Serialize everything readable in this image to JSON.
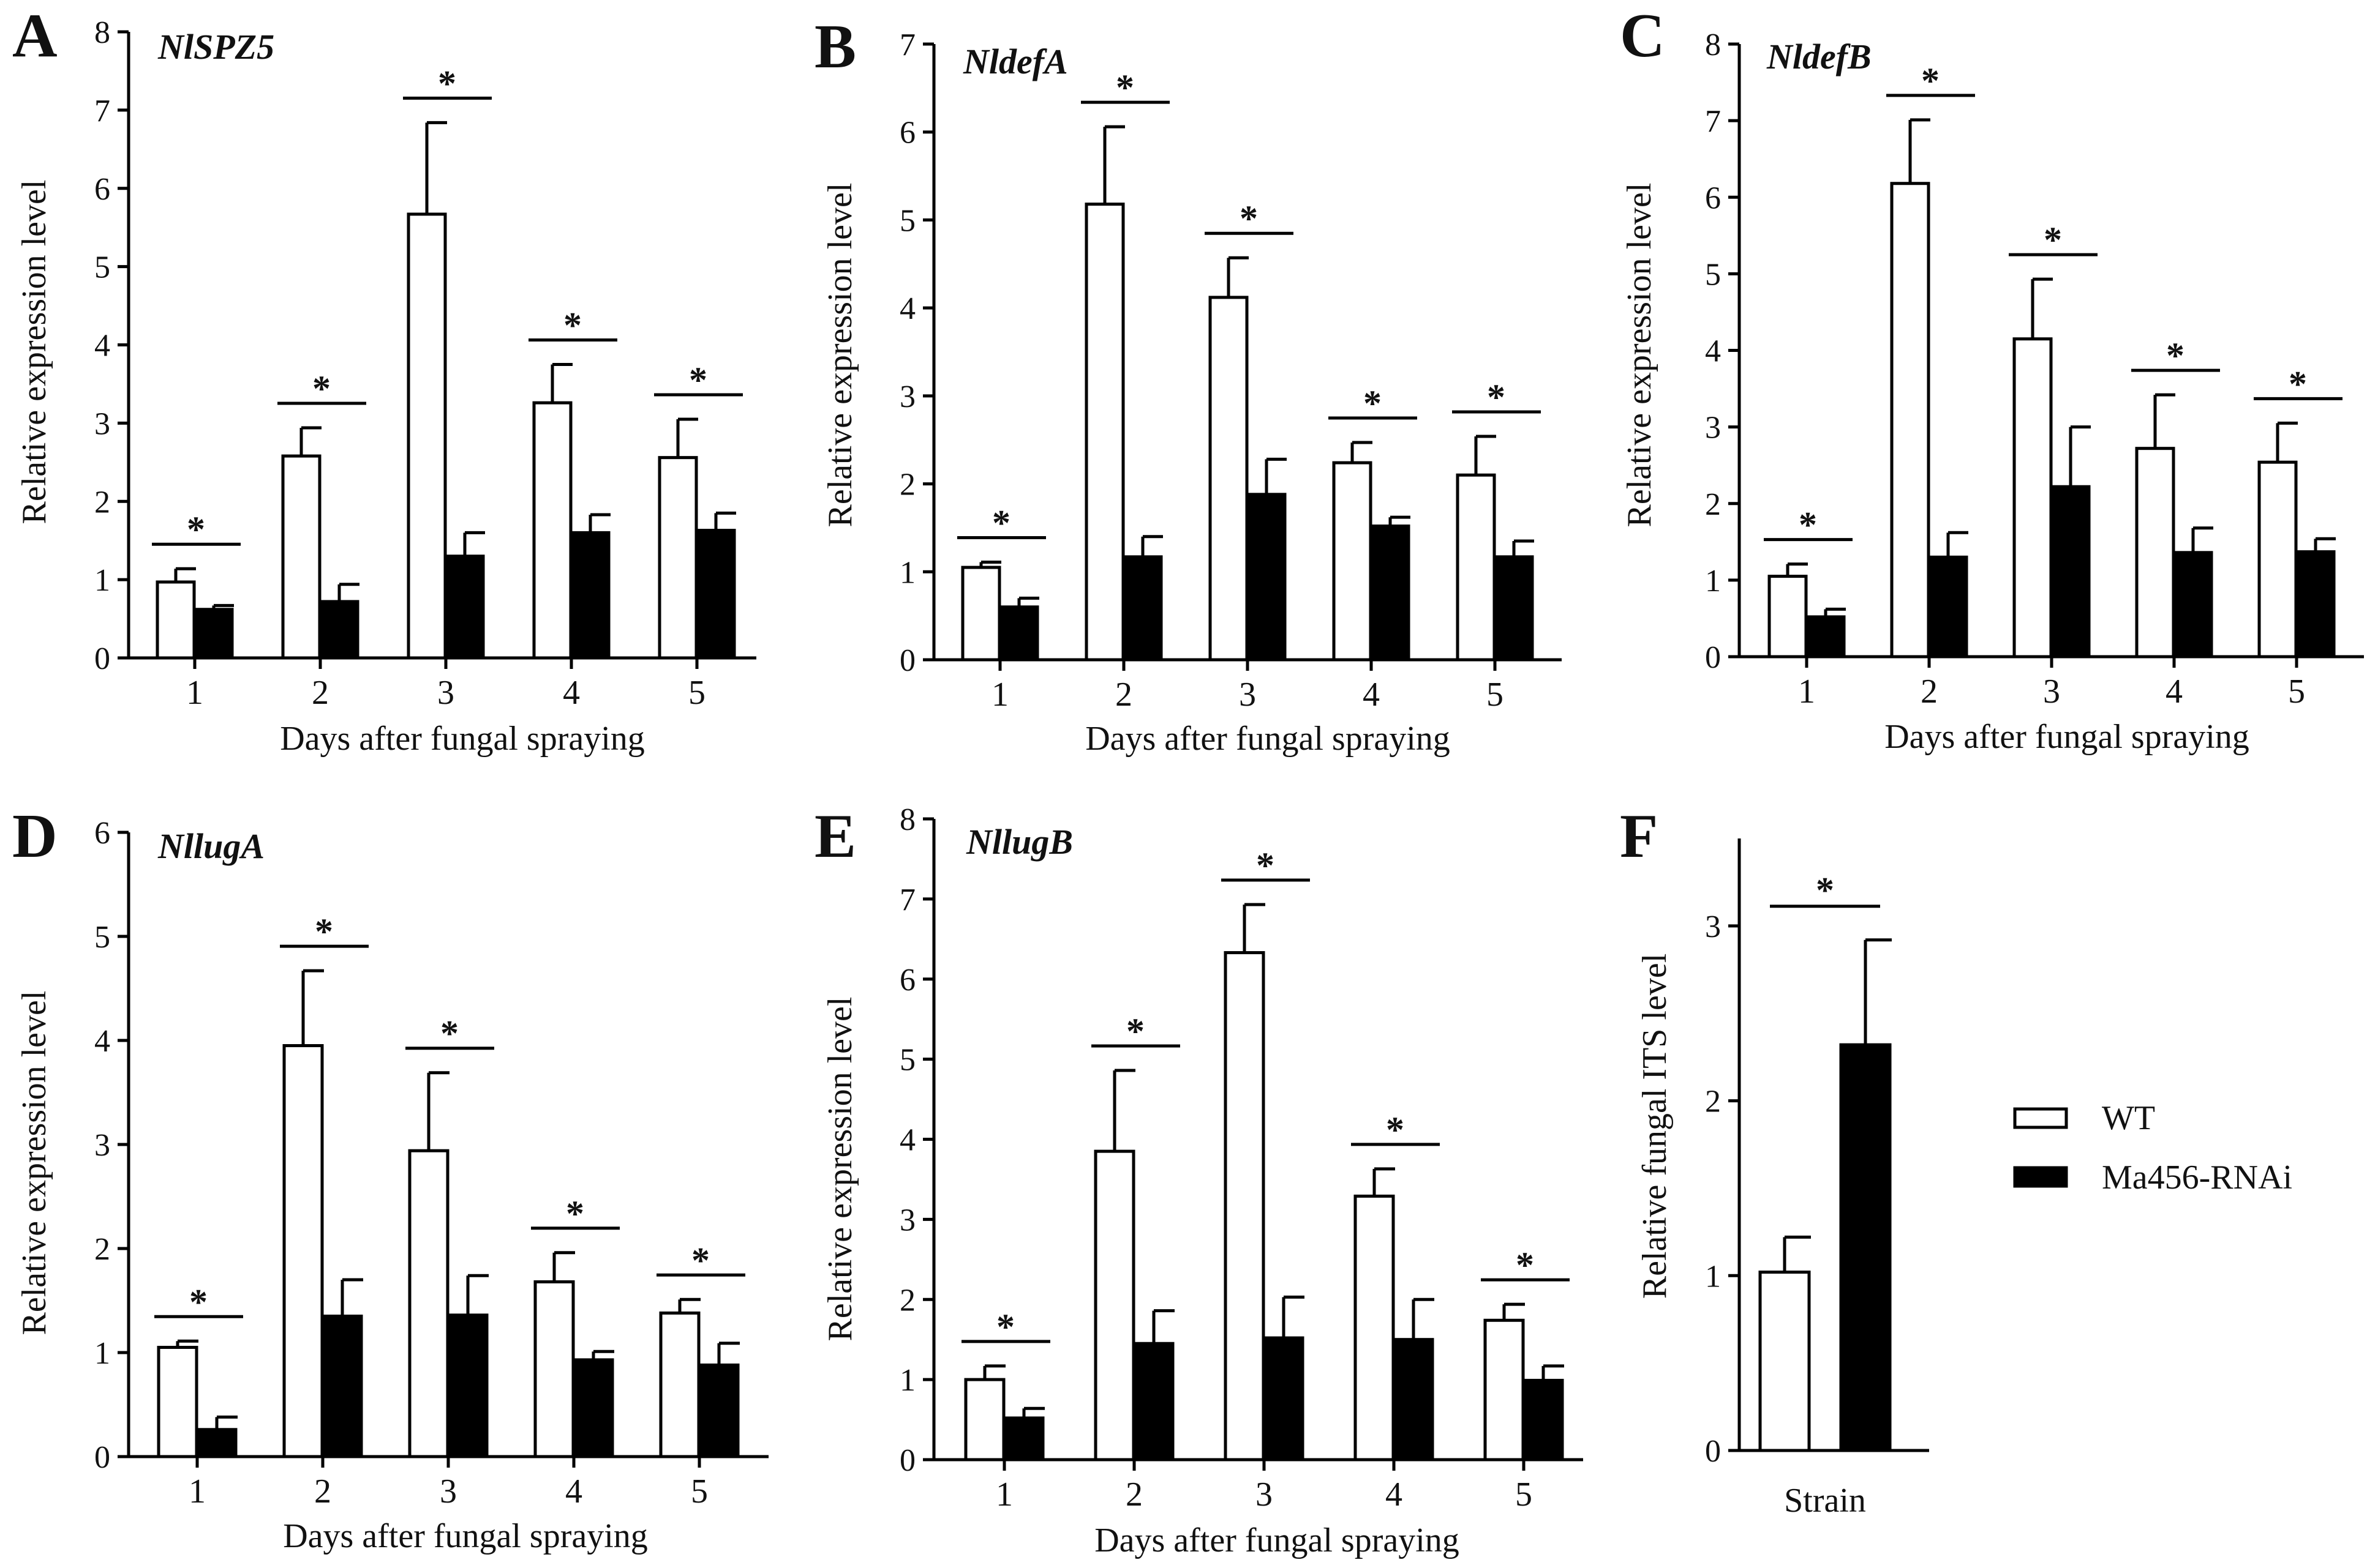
{
  "legend": {
    "wt_label": "WT",
    "rnai_label": "Ma456-RNAi",
    "wt_color": "#ffffff",
    "rnai_color": "#000000"
  },
  "chart_data": [
    {
      "type": "bar",
      "panel": "A",
      "title": "NlSPZ5",
      "xlabel": "Days after fungal spraying",
      "ylabel": "Relative expression level",
      "categories": [
        "1",
        "2",
        "3",
        "4",
        "5"
      ],
      "ylim": [
        0,
        8
      ],
      "yticks": [
        "0",
        "1",
        "2",
        "3",
        "4",
        "5",
        "6",
        "7",
        "8"
      ],
      "series": [
        {
          "name": "WT",
          "values": [
            0.97,
            2.58,
            5.67,
            3.26,
            2.56
          ],
          "errors": [
            0.17,
            0.36,
            1.17,
            0.49,
            0.49
          ]
        },
        {
          "name": "Ma456-RNAi",
          "values": [
            0.62,
            0.72,
            1.3,
            1.6,
            1.63
          ],
          "errors": [
            0.05,
            0.22,
            0.3,
            0.23,
            0.22
          ]
        }
      ],
      "significance": [
        "*",
        "*",
        "*",
        "*",
        "*"
      ]
    },
    {
      "type": "bar",
      "panel": "B",
      "title": "NldefA",
      "xlabel": "Days after fungal spraying",
      "ylabel": "Relative expression level",
      "categories": [
        "1",
        "2",
        "3",
        "4",
        "5"
      ],
      "ylim": [
        0,
        7
      ],
      "yticks": [
        "0",
        "1",
        "2",
        "3",
        "4",
        "5",
        "6",
        "7"
      ],
      "series": [
        {
          "name": "WT",
          "values": [
            1.05,
            5.18,
            4.12,
            2.24,
            2.1
          ],
          "errors": [
            0.06,
            0.88,
            0.45,
            0.23,
            0.44
          ]
        },
        {
          "name": "Ma456-RNAi",
          "values": [
            0.6,
            1.17,
            1.88,
            1.52,
            1.17
          ],
          "errors": [
            0.1,
            0.23,
            0.4,
            0.1,
            0.18
          ]
        }
      ],
      "significance": [
        "*",
        "*",
        "*",
        "*",
        "*"
      ]
    },
    {
      "type": "bar",
      "panel": "C",
      "title": "NldefB",
      "xlabel": "Days after fungal spraying",
      "ylabel": "Relative expression level",
      "categories": [
        "1",
        "2",
        "3",
        "4",
        "5"
      ],
      "ylim": [
        0,
        8
      ],
      "yticks": [
        "0",
        "1",
        "2",
        "3",
        "4",
        "5",
        "6",
        "7",
        "8"
      ],
      "series": [
        {
          "name": "WT",
          "values": [
            1.05,
            6.18,
            4.15,
            2.72,
            2.54
          ],
          "errors": [
            0.16,
            0.83,
            0.78,
            0.7,
            0.51
          ]
        },
        {
          "name": "Ma456-RNAi",
          "values": [
            0.52,
            1.3,
            2.22,
            1.36,
            1.37
          ],
          "errors": [
            0.1,
            0.32,
            0.78,
            0.32,
            0.17
          ]
        }
      ],
      "significance": [
        "*",
        "*",
        "*",
        "*",
        "*"
      ]
    },
    {
      "type": "bar",
      "panel": "D",
      "title": "NllugA",
      "xlabel": "Days after fungal spraying",
      "ylabel": "Relative expression level",
      "categories": [
        "1",
        "2",
        "3",
        "4",
        "5"
      ],
      "ylim": [
        0,
        6
      ],
      "yticks": [
        "0",
        "1",
        "2",
        "3",
        "4",
        "5",
        "6"
      ],
      "series": [
        {
          "name": "WT",
          "values": [
            1.05,
            3.95,
            2.94,
            1.68,
            1.38
          ],
          "errors": [
            0.06,
            0.72,
            0.75,
            0.28,
            0.13
          ]
        },
        {
          "name": "Ma456-RNAi",
          "values": [
            0.26,
            1.35,
            1.36,
            0.93,
            0.88
          ],
          "errors": [
            0.12,
            0.35,
            0.38,
            0.08,
            0.21
          ]
        }
      ],
      "significance": [
        "*",
        "*",
        "*",
        "*",
        "*"
      ]
    },
    {
      "type": "bar",
      "panel": "E",
      "title": "NllugB",
      "xlabel": "Days after fungal spraying",
      "ylabel": "Relative expression level",
      "categories": [
        "1",
        "2",
        "3",
        "4",
        "5"
      ],
      "ylim": [
        0,
        8
      ],
      "yticks": [
        "0",
        "1",
        "2",
        "3",
        "4",
        "5",
        "6",
        "7",
        "8"
      ],
      "series": [
        {
          "name": "WT",
          "values": [
            1.0,
            3.85,
            6.33,
            3.29,
            1.74
          ],
          "errors": [
            0.17,
            1.01,
            0.6,
            0.34,
            0.2
          ]
        },
        {
          "name": "Ma456-RNAi",
          "values": [
            0.52,
            1.45,
            1.52,
            1.5,
            0.99
          ],
          "errors": [
            0.12,
            0.41,
            0.51,
            0.5,
            0.18
          ]
        }
      ],
      "significance": [
        "*",
        "*",
        "*",
        "*",
        "*"
      ]
    },
    {
      "type": "bar",
      "panel": "F",
      "title": "",
      "xlabel": "Strain",
      "ylabel": "Relative fungal ITS level",
      "categories": [
        "WT",
        "Ma456-RNAi"
      ],
      "ylim": [
        0,
        3.5
      ],
      "yticks": [
        "0",
        "1",
        "2",
        "3"
      ],
      "values": [
        1.02,
        2.32
      ],
      "errors": [
        0.2,
        0.6
      ],
      "significance": [
        "*"
      ]
    }
  ]
}
